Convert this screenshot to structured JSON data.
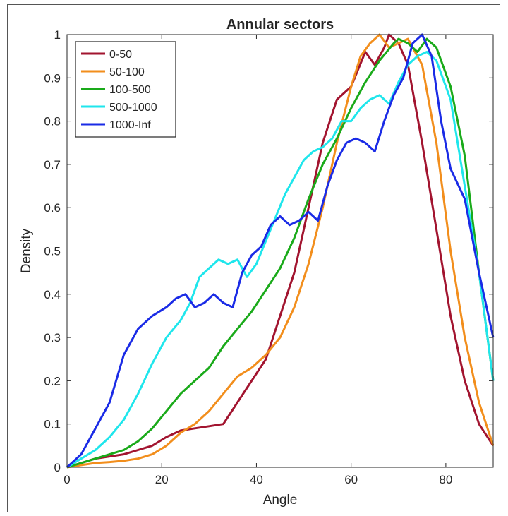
{
  "chart_data": {
    "type": "line",
    "title": "Annular sectors",
    "xlabel": "Angle",
    "ylabel": "Density",
    "xlim": [
      0,
      90
    ],
    "ylim": [
      0,
      1
    ],
    "xticks": [
      0,
      20,
      40,
      60,
      80
    ],
    "yticks": [
      0,
      0.1,
      0.2,
      0.3,
      0.4,
      0.5,
      0.6,
      0.7,
      0.8,
      0.9,
      1
    ],
    "grid": false,
    "legend_position": "top-left",
    "series": [
      {
        "name": "0-50",
        "color": "#a2142f",
        "x": [
          0,
          3,
          6,
          9,
          12,
          15,
          18,
          21,
          24,
          27,
          30,
          33,
          36,
          39,
          42,
          45,
          48,
          51,
          54,
          57,
          60,
          63,
          65,
          67,
          68,
          70,
          72,
          75,
          78,
          81,
          84,
          87,
          90
        ],
        "y": [
          0,
          0.01,
          0.02,
          0.025,
          0.03,
          0.04,
          0.05,
          0.07,
          0.085,
          0.09,
          0.095,
          0.1,
          0.15,
          0.2,
          0.25,
          0.35,
          0.45,
          0.6,
          0.75,
          0.85,
          0.88,
          0.96,
          0.93,
          0.97,
          1.0,
          0.98,
          0.93,
          0.75,
          0.55,
          0.35,
          0.2,
          0.1,
          0.05
        ]
      },
      {
        "name": "50-100",
        "color": "#f28e1c",
        "x": [
          0,
          3,
          6,
          9,
          12,
          15,
          18,
          21,
          24,
          27,
          30,
          33,
          36,
          39,
          42,
          45,
          48,
          51,
          54,
          57,
          60,
          62,
          64,
          66,
          68,
          70,
          72,
          75,
          78,
          81,
          84,
          87,
          90
        ],
        "y": [
          0,
          0.005,
          0.01,
          0.012,
          0.015,
          0.02,
          0.03,
          0.05,
          0.08,
          0.1,
          0.13,
          0.17,
          0.21,
          0.23,
          0.26,
          0.3,
          0.37,
          0.47,
          0.6,
          0.75,
          0.88,
          0.95,
          0.98,
          1.0,
          0.97,
          0.98,
          0.99,
          0.93,
          0.75,
          0.5,
          0.3,
          0.15,
          0.05
        ]
      },
      {
        "name": "100-500",
        "color": "#1aaa1a",
        "x": [
          0,
          3,
          6,
          9,
          12,
          15,
          18,
          21,
          24,
          27,
          30,
          33,
          36,
          39,
          42,
          45,
          48,
          51,
          54,
          57,
          60,
          63,
          66,
          69,
          70,
          72,
          74,
          76,
          78,
          81,
          84,
          87,
          90
        ],
        "y": [
          0,
          0.01,
          0.02,
          0.03,
          0.04,
          0.06,
          0.09,
          0.13,
          0.17,
          0.2,
          0.23,
          0.28,
          0.32,
          0.36,
          0.41,
          0.46,
          0.53,
          0.62,
          0.7,
          0.76,
          0.83,
          0.89,
          0.94,
          0.98,
          0.99,
          0.98,
          0.96,
          0.99,
          0.97,
          0.88,
          0.72,
          0.45,
          0.2
        ]
      },
      {
        "name": "500-1000",
        "color": "#1fe6ec",
        "x": [
          0,
          3,
          6,
          9,
          12,
          15,
          18,
          21,
          24,
          26,
          28,
          30,
          32,
          34,
          36,
          38,
          40,
          43,
          46,
          48,
          50,
          52,
          54,
          56,
          58,
          60,
          62,
          64,
          66,
          68,
          70,
          72,
          74,
          76,
          78,
          81,
          84,
          87,
          90
        ],
        "y": [
          0,
          0.02,
          0.04,
          0.07,
          0.11,
          0.17,
          0.24,
          0.3,
          0.34,
          0.38,
          0.44,
          0.46,
          0.48,
          0.47,
          0.48,
          0.44,
          0.47,
          0.55,
          0.63,
          0.67,
          0.71,
          0.73,
          0.74,
          0.76,
          0.8,
          0.8,
          0.83,
          0.85,
          0.86,
          0.84,
          0.89,
          0.93,
          0.95,
          0.96,
          0.94,
          0.85,
          0.65,
          0.45,
          0.2
        ]
      },
      {
        "name": "1000-Inf",
        "color": "#1a2be6",
        "x": [
          0,
          3,
          6,
          9,
          12,
          15,
          18,
          21,
          23,
          25,
          27,
          29,
          31,
          33,
          35,
          37,
          39,
          41,
          43,
          45,
          47,
          49,
          51,
          53,
          55,
          57,
          59,
          61,
          63,
          65,
          67,
          69,
          71,
          73,
          75,
          77,
          79,
          81,
          84,
          87,
          90
        ],
        "y": [
          0,
          0.03,
          0.09,
          0.15,
          0.26,
          0.32,
          0.35,
          0.37,
          0.39,
          0.4,
          0.37,
          0.38,
          0.4,
          0.38,
          0.37,
          0.45,
          0.49,
          0.51,
          0.56,
          0.58,
          0.56,
          0.57,
          0.59,
          0.57,
          0.65,
          0.71,
          0.75,
          0.76,
          0.75,
          0.73,
          0.8,
          0.86,
          0.9,
          0.98,
          1.0,
          0.95,
          0.8,
          0.69,
          0.62,
          0.45,
          0.3
        ]
      }
    ]
  }
}
